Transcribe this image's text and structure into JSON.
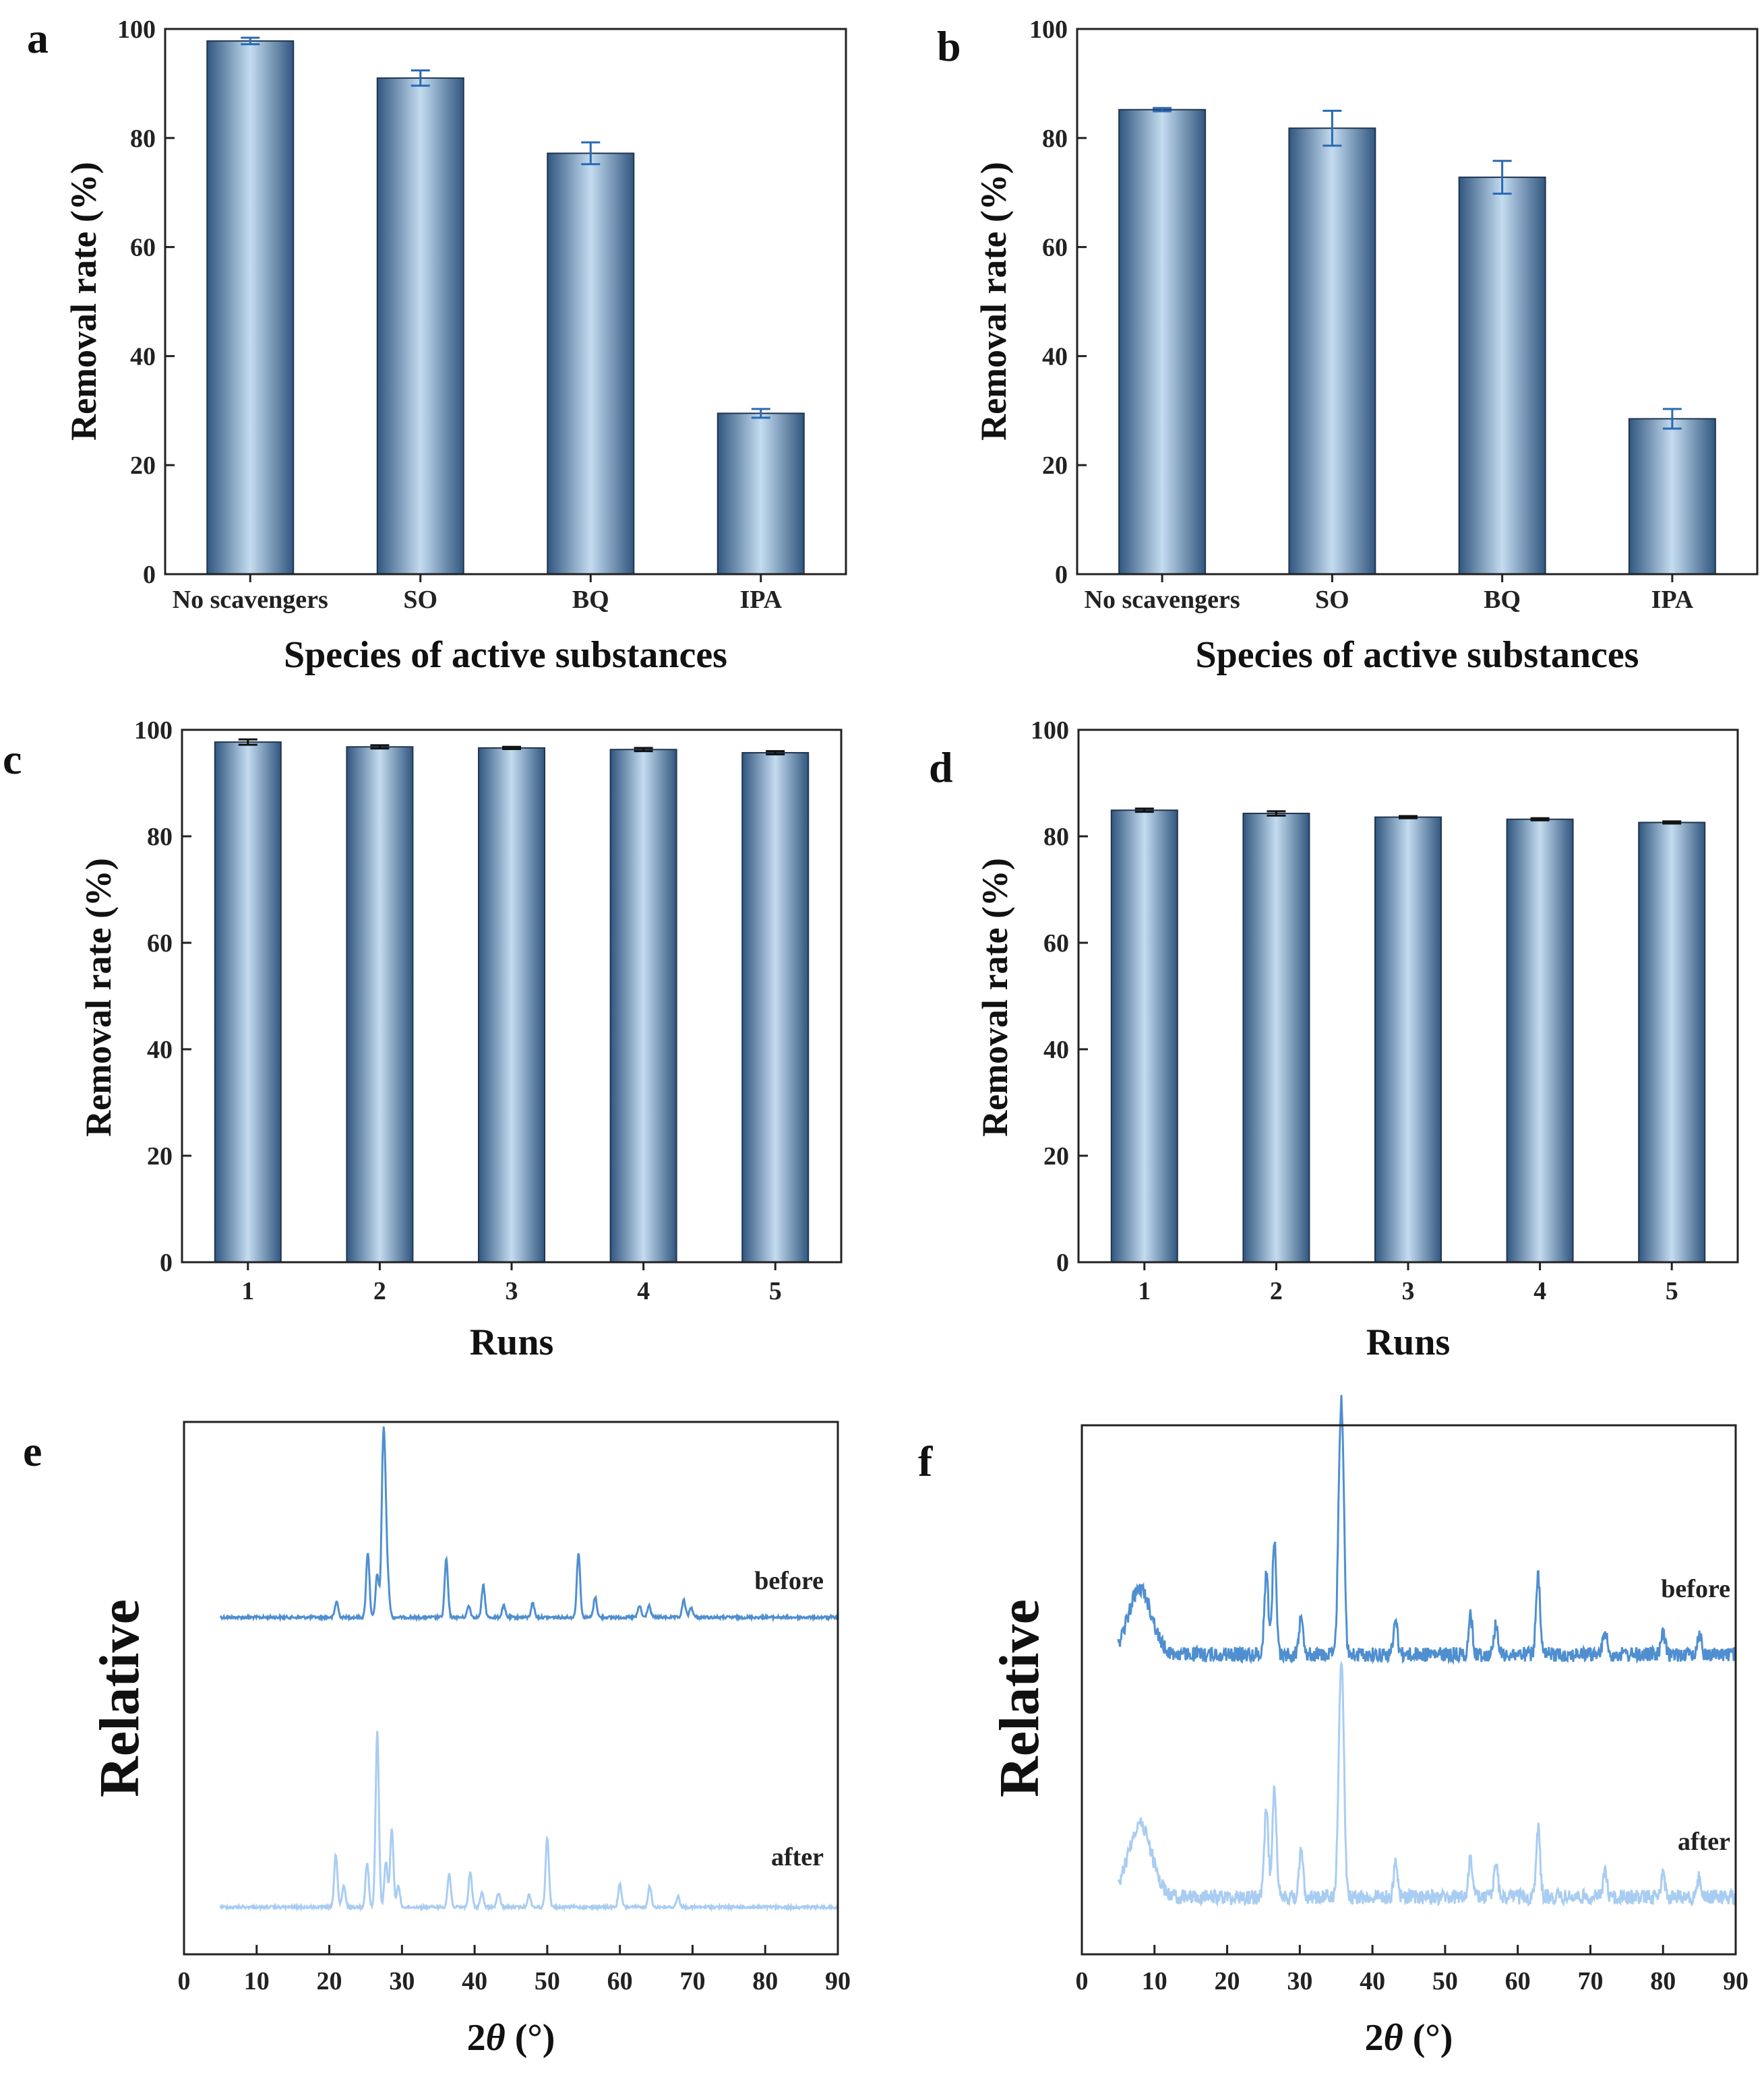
{
  "colors": {
    "bar_dark": "#31567f",
    "bar_light": "#c4dcf0",
    "errbar_ab": "#2a6ab3",
    "errbar_cd": "#111111",
    "xrd_before": "#4f8fd0",
    "xrd_after": "#a9cdf2",
    "axis": "#222222"
  },
  "chart_data": [
    {
      "panel": "a",
      "type": "bar",
      "categories": [
        "No scavengers",
        "SO",
        "BQ",
        "IPA"
      ],
      "values": [
        97.8,
        91.0,
        77.2,
        29.5
      ],
      "errors": [
        0.6,
        1.4,
        2.0,
        0.8
      ],
      "xlabel": "Species of active substances",
      "ylabel": "Removal rate (%)",
      "ylim": [
        0,
        100
      ],
      "yticks": [
        0,
        20,
        40,
        60,
        80,
        100
      ]
    },
    {
      "panel": "b",
      "type": "bar",
      "categories": [
        "No scavengers",
        "SO",
        "BQ",
        "IPA"
      ],
      "values": [
        85.2,
        81.8,
        72.8,
        28.5
      ],
      "errors": [
        0.3,
        3.2,
        3.0,
        1.8
      ],
      "xlabel": "Species of active substances",
      "ylabel": "Removal rate (%)",
      "ylim": [
        0,
        100
      ],
      "yticks": [
        0,
        20,
        40,
        60,
        80,
        100
      ]
    },
    {
      "panel": "c",
      "type": "bar",
      "categories": [
        "1",
        "2",
        "3",
        "4",
        "5"
      ],
      "values": [
        97.7,
        96.8,
        96.6,
        96.3,
        95.7
      ],
      "errors": [
        0.5,
        0.3,
        0.2,
        0.3,
        0.3
      ],
      "xlabel": "Runs",
      "ylabel": "Removal rate (%)",
      "ylim": [
        0,
        100
      ],
      "yticks": [
        0,
        20,
        40,
        60,
        80,
        100
      ]
    },
    {
      "panel": "d",
      "type": "bar",
      "categories": [
        "1",
        "2",
        "3",
        "4",
        "5"
      ],
      "values": [
        84.9,
        84.3,
        83.6,
        83.2,
        82.6
      ],
      "errors": [
        0.3,
        0.4,
        0.2,
        0.2,
        0.2
      ],
      "xlabel": "Runs",
      "ylabel": "Removal rate (%)",
      "ylim": [
        0,
        100
      ],
      "yticks": [
        0,
        20,
        40,
        60,
        80,
        100
      ]
    },
    {
      "panel": "e",
      "type": "line",
      "xlabel_prefix": "2",
      "xlabel_symbol": "θ",
      "xlabel_suffix": " (°)",
      "ylabel": "Relative",
      "xlim": [
        0,
        90
      ],
      "xticks": [
        0,
        10,
        20,
        30,
        40,
        50,
        60,
        70,
        80,
        90
      ],
      "series": [
        {
          "name": "before",
          "peaks": [
            [
              21.0,
              0.11
            ],
            [
              25.3,
              0.45
            ],
            [
              26.6,
              0.3
            ],
            [
              27.4,
              1.0
            ],
            [
              27.7,
              0.6
            ],
            [
              28.1,
              0.18
            ],
            [
              36.1,
              0.4
            ],
            [
              39.2,
              0.08
            ],
            [
              41.2,
              0.22
            ],
            [
              44.0,
              0.08
            ],
            [
              48.0,
              0.1
            ],
            [
              54.3,
              0.45
            ],
            [
              56.6,
              0.14
            ],
            [
              62.7,
              0.08
            ],
            [
              64.0,
              0.08
            ],
            [
              68.8,
              0.12
            ],
            [
              69.8,
              0.07
            ]
          ]
        },
        {
          "name": "after",
          "peaks": [
            [
              20.9,
              0.3
            ],
            [
              22.0,
              0.12
            ],
            [
              25.2,
              0.25
            ],
            [
              26.6,
              1.0
            ],
            [
              27.8,
              0.26
            ],
            [
              28.6,
              0.45
            ],
            [
              29.5,
              0.12
            ],
            [
              36.5,
              0.19
            ],
            [
              39.4,
              0.2
            ],
            [
              41.0,
              0.08
            ],
            [
              43.3,
              0.08
            ],
            [
              47.5,
              0.07
            ],
            [
              50.0,
              0.4
            ],
            [
              60.0,
              0.13
            ],
            [
              64.1,
              0.12
            ],
            [
              68.0,
              0.06
            ]
          ]
        }
      ]
    },
    {
      "panel": "f",
      "type": "line",
      "xlabel_prefix": "2",
      "xlabel_symbol": "θ",
      "xlabel_suffix": " (°)",
      "ylabel": "Relative",
      "xlim": [
        0,
        90
      ],
      "xticks": [
        0,
        10,
        20,
        30,
        40,
        50,
        60,
        70,
        80,
        90
      ],
      "series": [
        {
          "name": "before",
          "peaks": [
            [
              8.0,
              0.38
            ],
            [
              25.4,
              0.48
            ],
            [
              26.5,
              0.66
            ],
            [
              30.2,
              0.25
            ],
            [
              35.5,
              0.92
            ],
            [
              35.9,
              1.0
            ],
            [
              43.2,
              0.2
            ],
            [
              53.5,
              0.22
            ],
            [
              57.0,
              0.18
            ],
            [
              62.8,
              0.45
            ],
            [
              72.0,
              0.14
            ],
            [
              80.0,
              0.12
            ],
            [
              85.0,
              0.12
            ]
          ]
        },
        {
          "name": "after",
          "peaks": [
            [
              8.0,
              0.45
            ],
            [
              25.4,
              0.55
            ],
            [
              26.5,
              0.7
            ],
            [
              30.2,
              0.28
            ],
            [
              35.5,
              0.88
            ],
            [
              35.9,
              1.0
            ],
            [
              43.2,
              0.22
            ],
            [
              53.5,
              0.24
            ],
            [
              57.0,
              0.2
            ],
            [
              62.8,
              0.42
            ],
            [
              72.0,
              0.15
            ],
            [
              80.0,
              0.13
            ],
            [
              85.0,
              0.12
            ]
          ]
        }
      ]
    }
  ]
}
